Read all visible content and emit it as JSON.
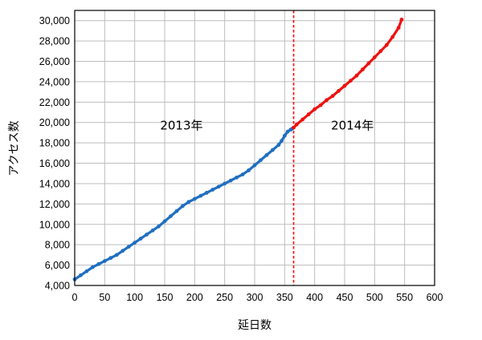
{
  "chart_data": {
    "type": "line",
    "xlabel": "延日数",
    "ylabel": "アクセス数",
    "xlim": [
      0,
      600
    ],
    "ylim": [
      4000,
      31000
    ],
    "x_ticks": [
      0,
      50,
      100,
      150,
      200,
      250,
      300,
      350,
      400,
      450,
      500,
      550,
      600
    ],
    "x_tick_labels": [
      "0",
      "50",
      "100",
      "150",
      "200",
      "250",
      "300",
      "350",
      "400",
      "450",
      "500",
      "550",
      "600"
    ],
    "y_ticks": [
      4000,
      6000,
      8000,
      10000,
      12000,
      14000,
      16000,
      18000,
      20000,
      22000,
      24000,
      26000,
      28000,
      30000
    ],
    "y_tick_labels": [
      "4,000",
      "6,000",
      "8,000",
      "10,000",
      "12,000",
      "14,000",
      "16,000",
      "18,000",
      "20,000",
      "22,000",
      "24,000",
      "26,000",
      "28,000",
      "30,000"
    ],
    "grid": true,
    "divider": {
      "x": 365,
      "color": "#ff0000",
      "style": "dashed"
    },
    "annotations": [
      {
        "text": "2013年",
        "x": 178,
        "y": 19300
      },
      {
        "text": "2014年",
        "x": 463,
        "y": 19300
      }
    ],
    "series": [
      {
        "color": "#1f6fc1",
        "x": [
          0,
          10,
          20,
          30,
          40,
          50,
          60,
          70,
          80,
          90,
          100,
          110,
          120,
          130,
          140,
          150,
          160,
          170,
          180,
          190,
          200,
          210,
          220,
          230,
          240,
          250,
          260,
          270,
          280,
          290,
          300,
          310,
          320,
          330,
          340,
          345,
          350,
          355,
          360,
          363
        ],
        "y": [
          4600,
          5000,
          5400,
          5800,
          6100,
          6400,
          6700,
          7000,
          7400,
          7800,
          8200,
          8600,
          9000,
          9400,
          9800,
          10300,
          10800,
          11300,
          11800,
          12200,
          12500,
          12800,
          13100,
          13400,
          13700,
          14000,
          14300,
          14600,
          14900,
          15300,
          15800,
          16300,
          16800,
          17300,
          17800,
          18200,
          18700,
          19100,
          19300,
          19400
        ]
      },
      {
        "color": "#ee1111",
        "x": [
          365,
          370,
          380,
          390,
          400,
          410,
          420,
          430,
          440,
          450,
          460,
          470,
          480,
          490,
          500,
          510,
          520,
          530,
          540,
          545
        ],
        "y": [
          19500,
          19800,
          20300,
          20800,
          21300,
          21700,
          22200,
          22600,
          23100,
          23600,
          24100,
          24600,
          25200,
          25800,
          26400,
          27000,
          27600,
          28400,
          29300,
          30100
        ]
      }
    ]
  }
}
